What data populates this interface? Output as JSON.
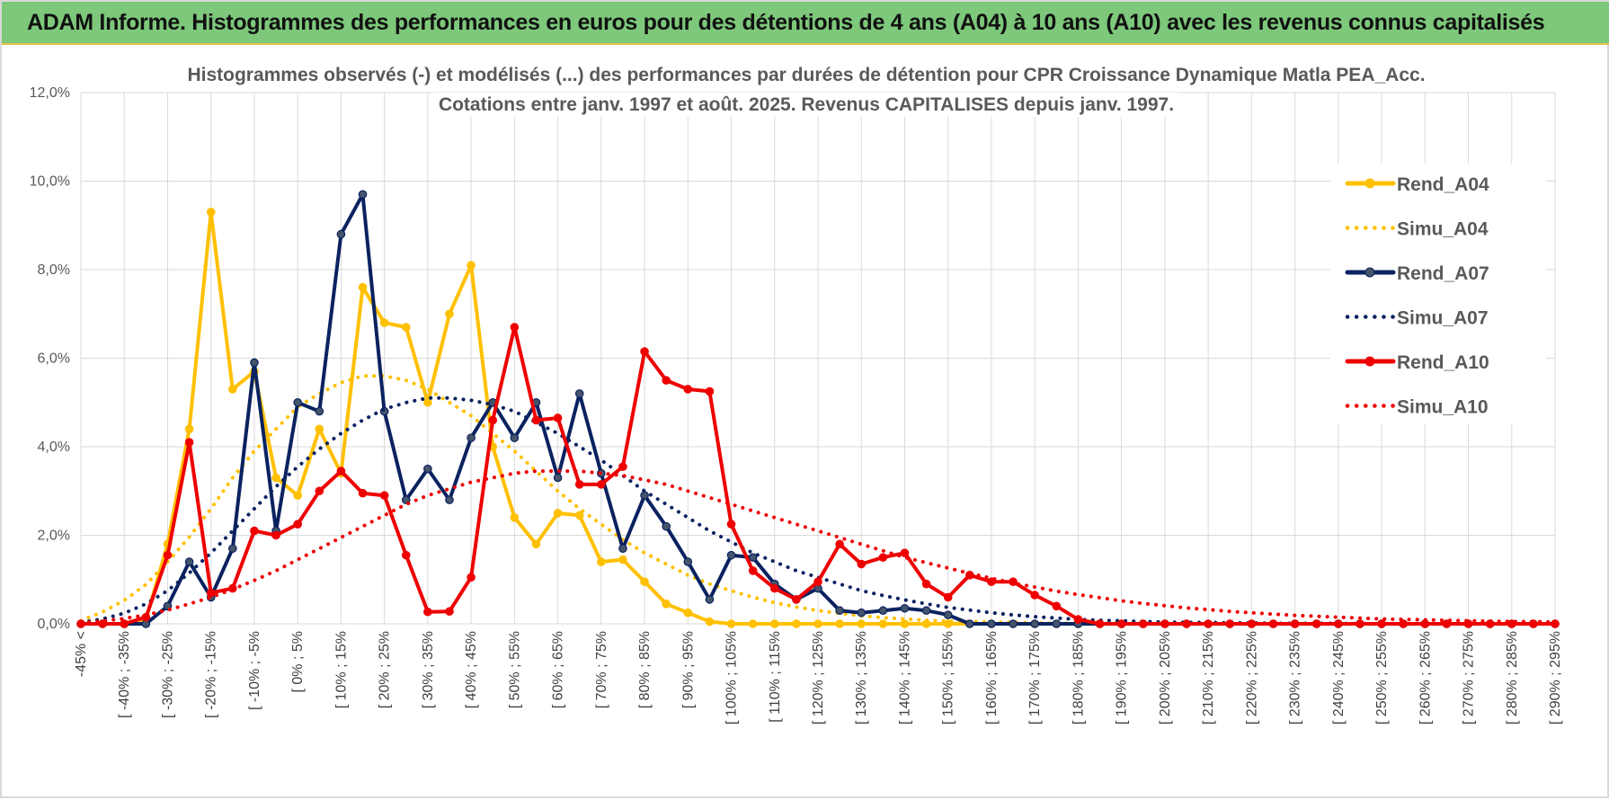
{
  "header": {
    "title": "ADAM Informe. Histogrammes des performances en euros pour des détentions de 4 ans (A04) à 10 ans (A10) avec les revenus connus capitalisés"
  },
  "colors": {
    "header_bg": "#7dc87a",
    "A04": "#ffc000",
    "A07": "#0b2260",
    "A10": "#ee0000",
    "grid": "#d9d9d9"
  },
  "chart_data": {
    "type": "line",
    "title_lines": [
      "Histogrammes observés (-) et modélisés (...) des performances par durées de détention pour CPR Croissance Dynamique Matla PEA_Acc.",
      "Cotations entre janv. 1997 et août. 2025. Revenus CAPITALISES depuis janv. 1997."
    ],
    "y_ticks": [
      "0,0%",
      "2,0%",
      "4,0%",
      "6,0%",
      "8,0%",
      "10,0%",
      "12,0%"
    ],
    "ylim": [
      0,
      12
    ],
    "grid": true,
    "legend_position": "right",
    "x_labels": [
      "-45% <",
      "[ -40% ; -35%",
      "[ -30% ; -25%",
      "[ -20% ; -15%",
      "[ -10% ; -5%",
      "[ 0% ; 5%",
      "[ 10% ; 15%",
      "[ 20% ; 25%",
      "[ 30% ; 35%",
      "[ 40% ; 45%",
      "[ 50% ; 55%",
      "[ 60% ; 65%",
      "[ 70% ; 75%",
      "[ 80% ; 85%",
      "[ 90% ; 95%",
      "[ 100% ; 105%",
      "[ 110% ; 115%",
      "[ 120% ; 125%",
      "[ 130% ; 135%",
      "[ 140% ; 145%",
      "[ 150% ; 155%",
      "[ 160% ; 165%",
      "[ 170% ; 175%",
      "[ 180% ; 185%",
      "[ 190% ; 195%",
      "[ 200% ; 205%",
      "[ 210% ; 215%",
      "[ 220% ; 225%",
      "[ 230% ; 235%",
      "[ 240% ; 245%",
      "[ 250% ; 255%",
      "[ 260% ; 265%",
      "[ 270% ; 275%",
      "[ 280% ; 285%",
      "[ 290% ; 295%"
    ],
    "series": [
      {
        "name": "Rend_A04",
        "style": "solid",
        "markers": true,
        "color": "#ffc000",
        "values": [
          0,
          0,
          0,
          0.1,
          1.8,
          4.4,
          9.3,
          5.3,
          5.7,
          3.3,
          2.9,
          4.4,
          3.4,
          7.6,
          6.8,
          6.7,
          5.0,
          7.0,
          8.1,
          4.0,
          2.4,
          1.8,
          2.5,
          2.45,
          1.4,
          1.45,
          0.95,
          0.45,
          0.25,
          0.05,
          0,
          0,
          0,
          0,
          0,
          0,
          0,
          0,
          0,
          0,
          0,
          0,
          0,
          0,
          0,
          0,
          0,
          0,
          0,
          0,
          0,
          0,
          0,
          0,
          0,
          0,
          0,
          0,
          0,
          0,
          0,
          0,
          0,
          0,
          0,
          0,
          0,
          0,
          0
        ]
      },
      {
        "name": "Simu_A04",
        "style": "dotted",
        "markers": false,
        "color": "#ffc000",
        "values": [
          0.07,
          0.27,
          0.53,
          0.89,
          1.4,
          1.96,
          2.6,
          3.3,
          3.9,
          4.4,
          4.9,
          5.2,
          5.45,
          5.6,
          5.6,
          5.5,
          5.3,
          5.0,
          4.7,
          4.3,
          3.9,
          3.45,
          3.0,
          2.6,
          2.25,
          1.9,
          1.6,
          1.35,
          1.1,
          0.9,
          0.75,
          0.6,
          0.48,
          0.38,
          0.3,
          0.24,
          0.18,
          0.14,
          0.11,
          0.08,
          0.06,
          0.05,
          0.04,
          0.03,
          0.02,
          0.01,
          0.01,
          0.01,
          0.01,
          0,
          0,
          0,
          0,
          0,
          0,
          0,
          0,
          0,
          0,
          0,
          0,
          0,
          0,
          0,
          0,
          0,
          0,
          0,
          0
        ]
      },
      {
        "name": "Rend_A07",
        "style": "solid",
        "markers": true,
        "color": "#0b2260",
        "values": [
          0,
          0,
          0,
          0,
          0.4,
          1.4,
          0.6,
          1.7,
          5.9,
          2.1,
          5.0,
          4.8,
          8.8,
          9.7,
          4.8,
          2.8,
          3.5,
          2.8,
          4.2,
          5.0,
          4.2,
          5.0,
          3.3,
          5.2,
          3.4,
          1.7,
          2.9,
          2.2,
          1.4,
          0.55,
          1.55,
          1.5,
          0.9,
          0.55,
          0.8,
          0.3,
          0.25,
          0.3,
          0.35,
          0.3,
          0.2,
          0,
          0,
          0,
          0,
          0,
          0,
          0,
          0,
          0,
          0,
          0,
          0,
          0,
          0,
          0,
          0,
          0,
          0,
          0,
          0,
          0,
          0,
          0,
          0,
          0,
          0,
          0,
          0
        ]
      },
      {
        "name": "Simu_A07",
        "style": "dotted",
        "markers": false,
        "color": "#0b2260",
        "values": [
          0.03,
          0.11,
          0.24,
          0.45,
          0.75,
          1.15,
          1.6,
          2.1,
          2.6,
          3.1,
          3.55,
          3.95,
          4.3,
          4.6,
          4.85,
          5.0,
          5.1,
          5.1,
          5.05,
          4.95,
          4.8,
          4.55,
          4.3,
          4.0,
          3.7,
          3.35,
          3.0,
          2.7,
          2.4,
          2.1,
          1.85,
          1.6,
          1.4,
          1.2,
          1.05,
          0.9,
          0.75,
          0.64,
          0.54,
          0.45,
          0.37,
          0.31,
          0.25,
          0.2,
          0.16,
          0.13,
          0.1,
          0.08,
          0.07,
          0.05,
          0.04,
          0.03,
          0.03,
          0.02,
          0.02,
          0.01,
          0.01,
          0.01,
          0.01,
          0,
          0,
          0,
          0,
          0,
          0,
          0,
          0,
          0,
          0
        ]
      },
      {
        "name": "Rend_A10",
        "style": "solid",
        "markers": true,
        "color": "#ee0000",
        "values": [
          0,
          0,
          0,
          0.15,
          1.55,
          4.1,
          0.7,
          0.8,
          2.1,
          2.0,
          2.25,
          3.0,
          3.45,
          2.95,
          2.9,
          1.55,
          0.27,
          0.28,
          1.05,
          4.6,
          6.7,
          4.6,
          4.65,
          3.15,
          3.15,
          3.55,
          6.15,
          5.5,
          5.3,
          5.25,
          2.25,
          1.2,
          0.8,
          0.55,
          0.95,
          1.8,
          1.35,
          1.5,
          1.6,
          0.9,
          0.6,
          1.1,
          0.95,
          0.95,
          0.65,
          0.4,
          0.1,
          0,
          0,
          0,
          0,
          0,
          0,
          0,
          0,
          0,
          0,
          0,
          0,
          0,
          0,
          0,
          0,
          0,
          0,
          0,
          0,
          0,
          0
        ]
      },
      {
        "name": "Simu_A10",
        "style": "dotted",
        "markers": false,
        "color": "#ee0000",
        "values": [
          0.02,
          0.06,
          0.12,
          0.2,
          0.31,
          0.45,
          0.6,
          0.78,
          0.98,
          1.2,
          1.45,
          1.7,
          1.95,
          2.2,
          2.45,
          2.7,
          2.9,
          3.05,
          3.2,
          3.3,
          3.4,
          3.45,
          3.45,
          3.45,
          3.4,
          3.35,
          3.25,
          3.15,
          3.0,
          2.85,
          2.7,
          2.55,
          2.4,
          2.25,
          2.1,
          1.95,
          1.8,
          1.65,
          1.5,
          1.38,
          1.26,
          1.14,
          1.03,
          0.92,
          0.83,
          0.74,
          0.66,
          0.59,
          0.52,
          0.46,
          0.41,
          0.36,
          0.32,
          0.28,
          0.25,
          0.22,
          0.19,
          0.17,
          0.15,
          0.13,
          0.11,
          0.1,
          0.09,
          0.08,
          0.07,
          0.06,
          0.05,
          0.05,
          0.04
        ]
      }
    ]
  }
}
